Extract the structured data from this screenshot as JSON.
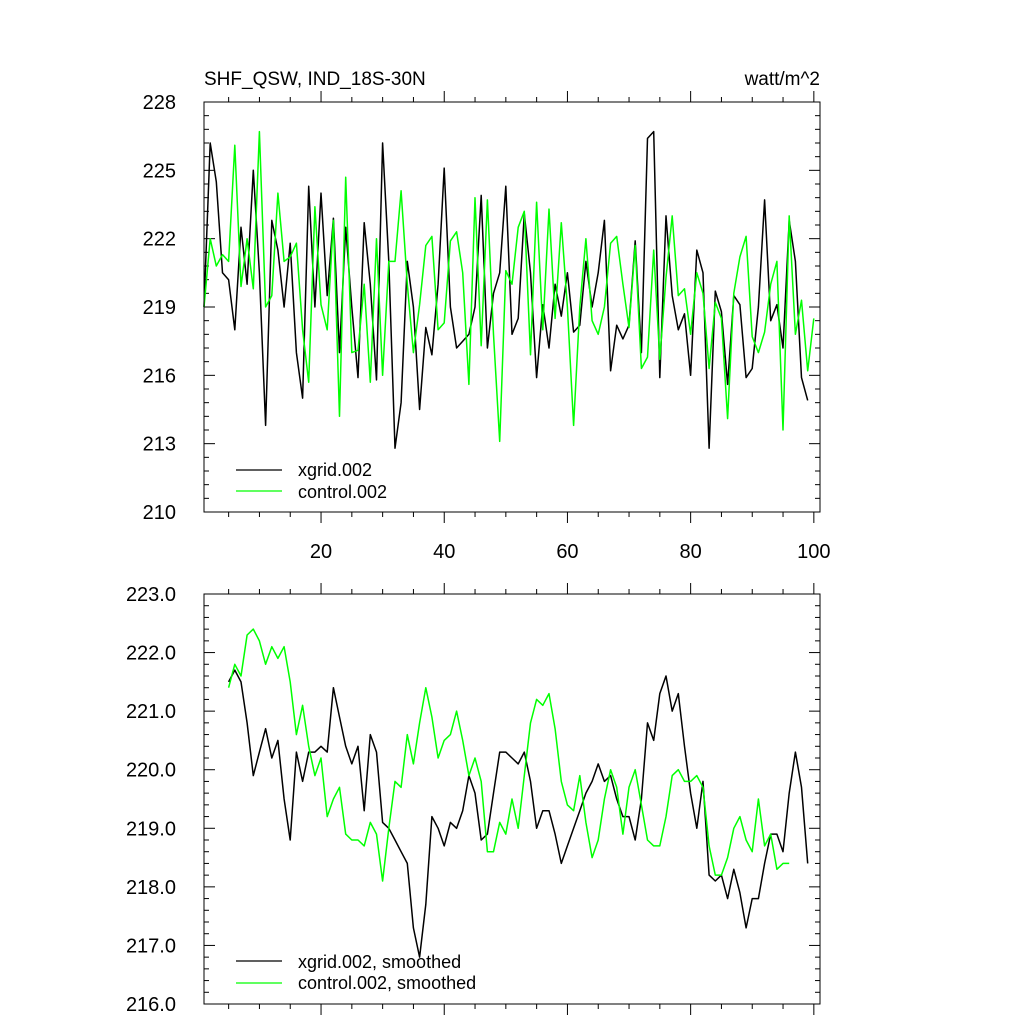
{
  "chart_data": [
    {
      "type": "line",
      "title": "SHF_QSW, IND_18S-30N",
      "units": "watt/m^2",
      "xlim": [
        1,
        101
      ],
      "ylim": [
        210,
        228
      ],
      "xticks": [
        20,
        40,
        60,
        80,
        100
      ],
      "yticks": [
        210,
        213,
        216,
        219,
        222,
        225,
        228
      ],
      "ytick_labels": [
        "210",
        "213",
        "216",
        "219",
        "222",
        "225",
        "228"
      ],
      "legend_position": "bottom-left",
      "series": [
        {
          "name": "xgrid.002",
          "color": "#000000",
          "values": [
            219.0,
            226.2,
            224.5,
            220.5,
            220.2,
            218.0,
            222.5,
            220.0,
            225.0,
            220.5,
            213.8,
            222.8,
            221.5,
            219.0,
            221.8,
            217.0,
            215.0,
            224.3,
            219.0,
            224.0,
            219.5,
            222.9,
            217.0,
            222.5,
            219.0,
            215.9,
            222.7,
            220.0,
            215.8,
            226.2,
            221.0,
            212.8,
            214.8,
            221.0,
            219.0,
            214.5,
            218.1,
            216.9,
            220.0,
            225.1,
            219.0,
            217.2,
            217.5,
            217.8,
            219.0,
            223.9,
            217.2,
            219.6,
            220.5,
            224.3,
            217.8,
            218.5,
            223.1,
            220.5,
            215.9,
            219.1,
            217.2,
            220.0,
            218.6,
            220.5,
            217.9,
            218.2,
            221.0,
            219.0,
            220.5,
            222.8,
            216.2,
            218.2,
            217.6,
            218.2,
            221.9,
            217.0,
            226.4,
            226.7,
            215.9,
            223.0,
            219.5,
            218.0,
            218.7,
            216.0,
            221.5,
            220.5,
            212.8,
            219.7,
            218.8,
            215.6,
            219.5,
            219.1,
            215.9,
            216.3,
            219.0,
            223.7,
            218.4,
            219.1,
            217.2,
            222.8,
            221.0,
            215.9,
            214.9
          ]
        },
        {
          "name": "control.002",
          "color": "#00ff00",
          "values": [
            219.0,
            222.0,
            220.8,
            221.3,
            221.0,
            226.1,
            219.9,
            222.0,
            219.8,
            226.7,
            219.0,
            219.5,
            224.0,
            221.0,
            221.2,
            221.8,
            218.0,
            215.7,
            223.4,
            219.1,
            218.0,
            222.8,
            214.2,
            224.7,
            217.0,
            217.1,
            220.0,
            215.7,
            222.0,
            216.0,
            221.0,
            221.0,
            224.1,
            220.0,
            217.0,
            219.1,
            221.7,
            222.1,
            218.0,
            218.3,
            221.9,
            222.3,
            220.5,
            215.6,
            223.8,
            217.3,
            223.7,
            217.8,
            213.1,
            220.6,
            220.0,
            222.5,
            223.2,
            216.9,
            223.6,
            218.0,
            223.3,
            218.5,
            222.7,
            219.0,
            213.8,
            219.0,
            222.0,
            218.4,
            217.8,
            219.0,
            221.8,
            222.1,
            220.0,
            218.1,
            221.7,
            216.3,
            216.8,
            221.5,
            216.7,
            220.3,
            223.0,
            219.5,
            219.8,
            217.8,
            220.5,
            219.6,
            216.3,
            219.2,
            218.5,
            214.1,
            219.6,
            221.2,
            222.1,
            217.7,
            217.0,
            217.9,
            220.0,
            221.0,
            213.6,
            223.0,
            217.8,
            219.3,
            216.2,
            218.5
          ]
        }
      ]
    },
    {
      "type": "line",
      "xlim": [
        1,
        101
      ],
      "ylim": [
        216,
        223
      ],
      "xticks": [
        20,
        40,
        60,
        80,
        100
      ],
      "yticks": [
        216,
        217,
        218,
        219,
        220,
        221,
        222,
        223
      ],
      "ytick_labels": [
        "216.0",
        "217.0",
        "218.0",
        "219.0",
        "220.0",
        "221.0",
        "222.0",
        "223.0"
      ],
      "legend_position": "bottom-left",
      "series": [
        {
          "name": "xgrid.002, smoothed",
          "color": "#000000",
          "x_start": 5,
          "values": [
            221.5,
            221.7,
            221.5,
            220.8,
            219.9,
            220.3,
            220.7,
            220.2,
            220.5,
            219.5,
            218.8,
            220.3,
            219.8,
            220.3,
            220.3,
            220.4,
            220.3,
            221.4,
            220.9,
            220.4,
            220.1,
            220.4,
            219.3,
            220.6,
            220.3,
            219.1,
            219.0,
            218.8,
            218.6,
            218.4,
            217.3,
            216.8,
            217.7,
            219.2,
            219.0,
            218.7,
            219.1,
            219.0,
            219.3,
            219.9,
            219.6,
            218.8,
            218.9,
            219.6,
            220.3,
            220.3,
            220.2,
            220.1,
            220.3,
            219.8,
            219.0,
            219.3,
            219.3,
            218.9,
            218.4,
            218.7,
            219.0,
            219.3,
            219.6,
            219.8,
            220.1,
            219.8,
            219.9,
            219.5,
            219.2,
            219.2,
            218.8,
            219.5,
            220.8,
            220.5,
            221.3,
            221.6,
            221.0,
            221.3,
            220.4,
            219.6,
            219.0,
            219.8,
            218.2,
            218.1,
            218.2,
            217.8,
            218.3,
            217.9,
            217.3,
            217.8,
            217.8,
            218.4,
            218.9,
            218.9,
            218.6,
            219.6,
            220.3,
            219.7,
            218.4
          ]
        },
        {
          "name": "control.002, smoothed",
          "color": "#00ff00",
          "x_start": 5,
          "values": [
            221.4,
            221.8,
            221.6,
            222.3,
            222.4,
            222.2,
            221.8,
            222.1,
            221.9,
            222.1,
            221.5,
            220.6,
            221.1,
            220.4,
            219.9,
            220.2,
            219.2,
            219.5,
            219.7,
            218.9,
            218.8,
            218.8,
            218.7,
            219.1,
            218.9,
            218.1,
            219.0,
            219.8,
            219.7,
            220.6,
            220.1,
            220.8,
            221.4,
            220.9,
            220.2,
            220.5,
            220.6,
            221.0,
            220.5,
            219.9,
            220.2,
            219.8,
            218.6,
            218.6,
            219.1,
            218.9,
            219.5,
            219.0,
            219.9,
            220.8,
            221.2,
            221.1,
            221.3,
            220.7,
            219.8,
            219.4,
            219.3,
            219.9,
            219.1,
            218.5,
            218.8,
            219.5,
            220.0,
            219.7,
            218.9,
            219.7,
            220.0,
            219.4,
            218.8,
            218.7,
            218.7,
            219.2,
            219.9,
            220.0,
            219.8,
            219.8,
            219.9,
            219.7,
            218.7,
            218.2,
            218.2,
            218.5,
            219.0,
            219.2,
            218.8,
            218.6,
            219.5,
            218.7,
            218.9,
            218.3,
            218.4,
            218.4
          ]
        }
      ]
    }
  ]
}
